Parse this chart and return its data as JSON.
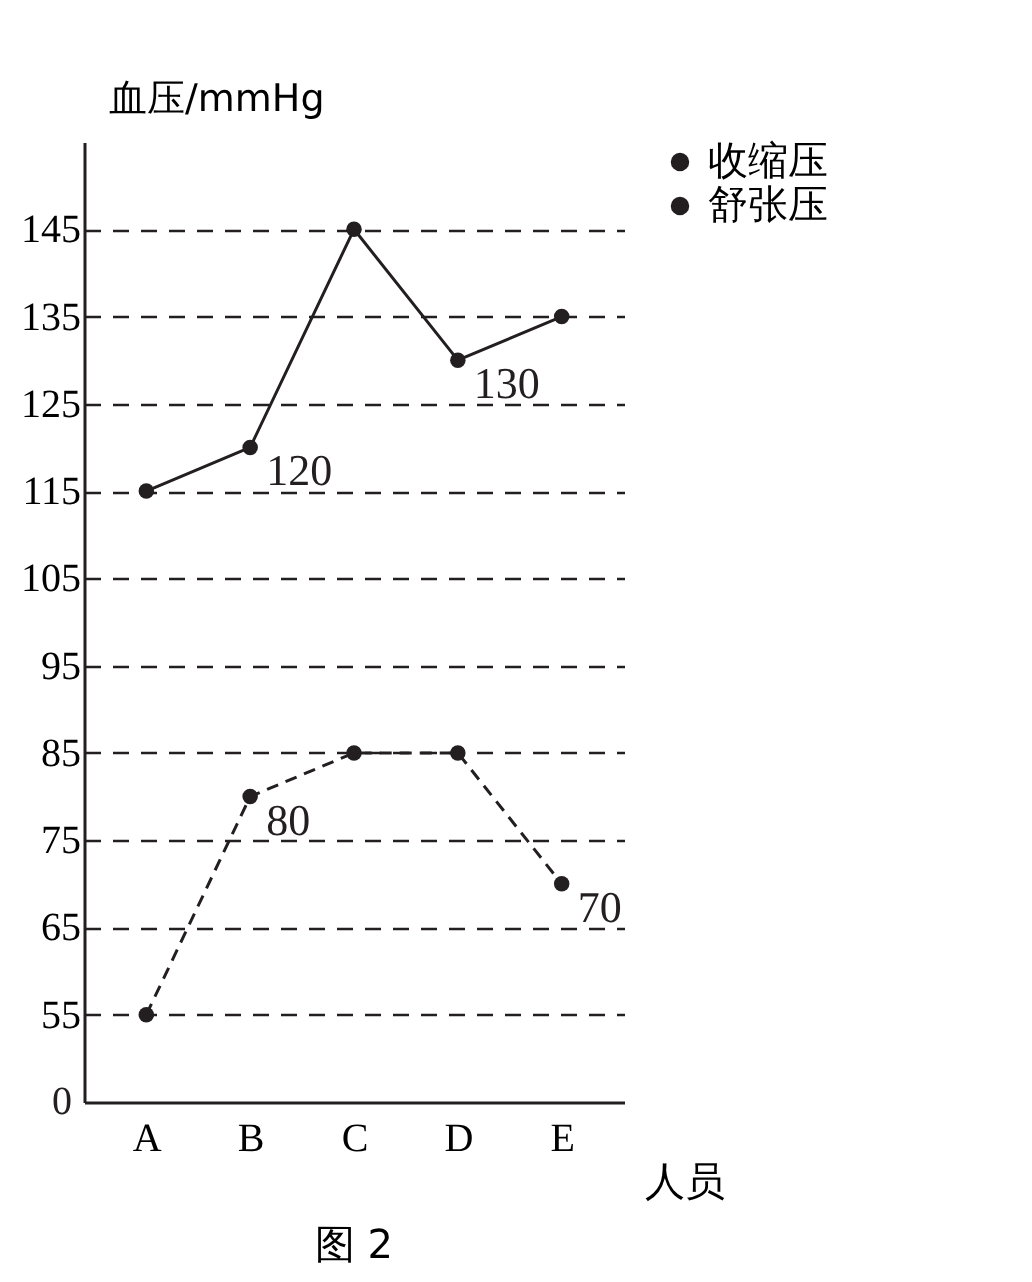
{
  "chart_data": {
    "type": "line",
    "xlabel": "人员",
    "ylabel": "血压/mmHg",
    "categories": [
      "A",
      "B",
      "C",
      "D",
      "E"
    ],
    "series": [
      {
        "name": "收缩压",
        "color": "#231f20",
        "values": [
          115,
          120,
          145,
          130,
          135
        ],
        "value_labels": [
          null,
          "120",
          null,
          "130",
          null
        ],
        "line_style": "solid"
      },
      {
        "name": "舒张压",
        "color": "#231f20",
        "values": [
          55,
          80,
          85,
          85,
          70
        ],
        "value_labels": [
          null,
          "80",
          null,
          null,
          "70"
        ],
        "line_style": "dashed"
      }
    ],
    "ylim": [
      45,
      155
    ],
    "yticks": [
      55,
      65,
      75,
      85,
      95,
      105,
      115,
      125,
      135,
      145
    ],
    "grid": "y",
    "marker": "circle",
    "legend": "right",
    "annotations": [
      "0",
      "图 2"
    ]
  }
}
